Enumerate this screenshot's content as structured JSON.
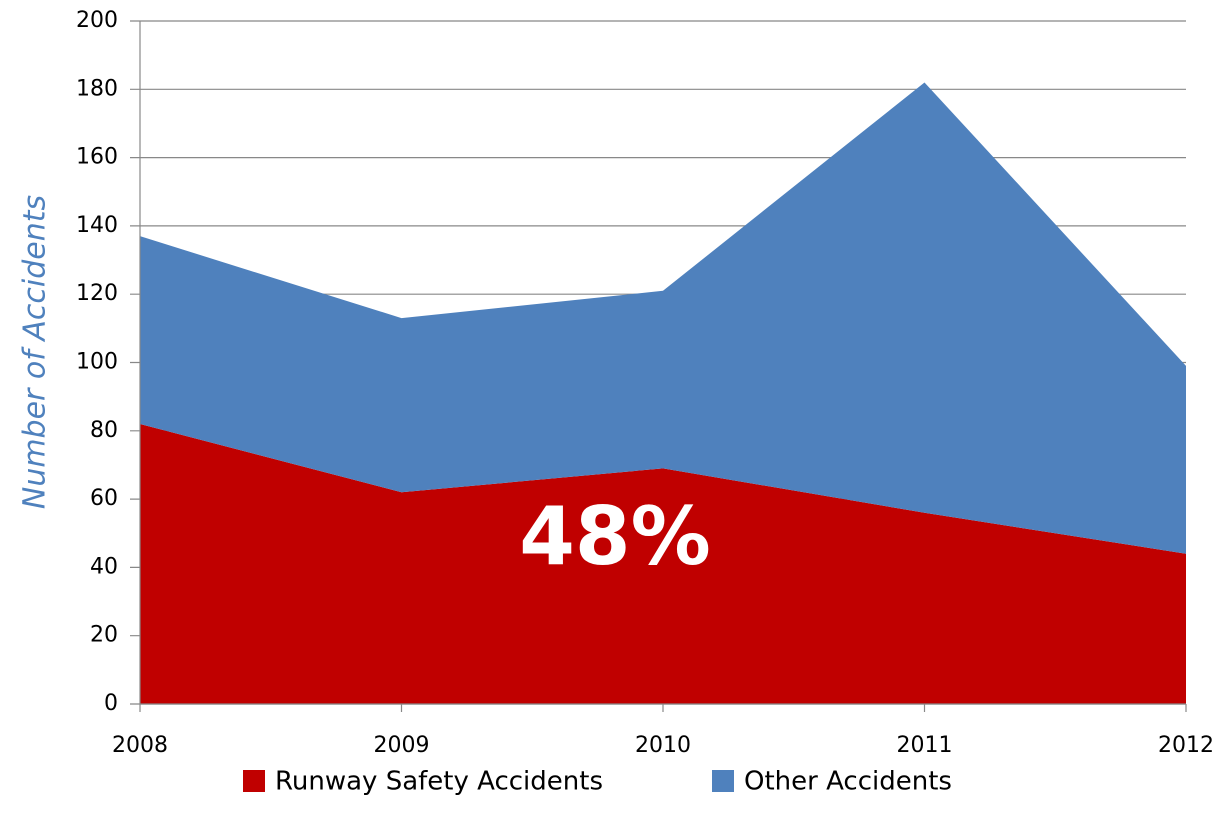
{
  "chart_data": {
    "type": "stacked_area",
    "categories": [
      "2008",
      "2009",
      "2010",
      "2011",
      "2012"
    ],
    "series": [
      {
        "name": "Runway Safety Accidents",
        "color": "#c00000",
        "values": [
          82,
          62,
          69,
          56,
          44
        ]
      },
      {
        "name": "Other Accidents",
        "color": "#4f81bd",
        "values": [
          55,
          51,
          52,
          126,
          55
        ]
      }
    ],
    "y_label": "Number of Accidents",
    "annotation": "48%",
    "ylim": [
      0,
      200
    ],
    "yticks": [
      0,
      20,
      40,
      60,
      80,
      100,
      120,
      140,
      160,
      180,
      200
    ],
    "grid": true,
    "legend": "bottom"
  }
}
